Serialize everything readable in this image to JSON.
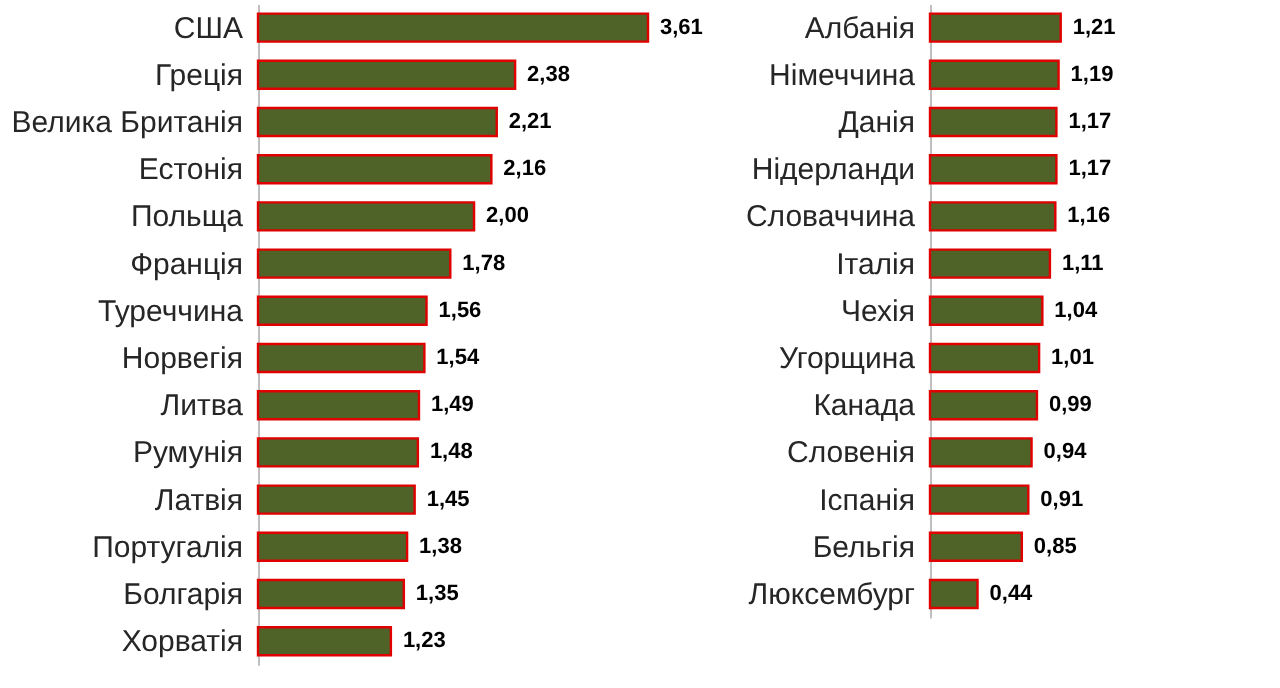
{
  "chart_data": [
    {
      "type": "bar",
      "orientation": "horizontal",
      "color": "#4f6228",
      "categories": [
        "США",
        "Греція",
        "Велика Британія",
        "Естонія",
        "Польща",
        "Франція",
        "Туреччина",
        "Норвегія",
        "Литва",
        "Румунія",
        "Латвія",
        "Португалія",
        "Болгарія",
        "Хорватія"
      ],
      "values": [
        3.61,
        2.38,
        2.21,
        2.16,
        2.0,
        1.78,
        1.56,
        1.54,
        1.49,
        1.48,
        1.45,
        1.38,
        1.35,
        1.23
      ],
      "value_labels": [
        "3,61",
        "2,38",
        "2,21",
        "2,16",
        "2,00",
        "1,78",
        "1,56",
        "1,54",
        "1,49",
        "1,48",
        "1,45",
        "1,38",
        "1,35",
        "1,23"
      ]
    },
    {
      "type": "bar",
      "orientation": "horizontal",
      "color": "#4f6228",
      "categories": [
        "Албанія",
        "Німеччина",
        "Данія",
        "Нідерланди",
        "Словаччина",
        "Італія",
        "Чехія",
        "Угорщина",
        "Канада",
        "Словенія",
        "Іспанія",
        "Бельгія",
        "Люксембург"
      ],
      "values": [
        1.21,
        1.19,
        1.17,
        1.17,
        1.16,
        1.11,
        1.04,
        1.01,
        0.99,
        0.94,
        0.91,
        0.85,
        0.44
      ],
      "value_labels": [
        "1,21",
        "1,19",
        "1,17",
        "1,17",
        "1,16",
        "1,11",
        "1,04",
        "1,01",
        "0,99",
        "0,94",
        "0,91",
        "0,85",
        "0,44"
      ]
    }
  ]
}
